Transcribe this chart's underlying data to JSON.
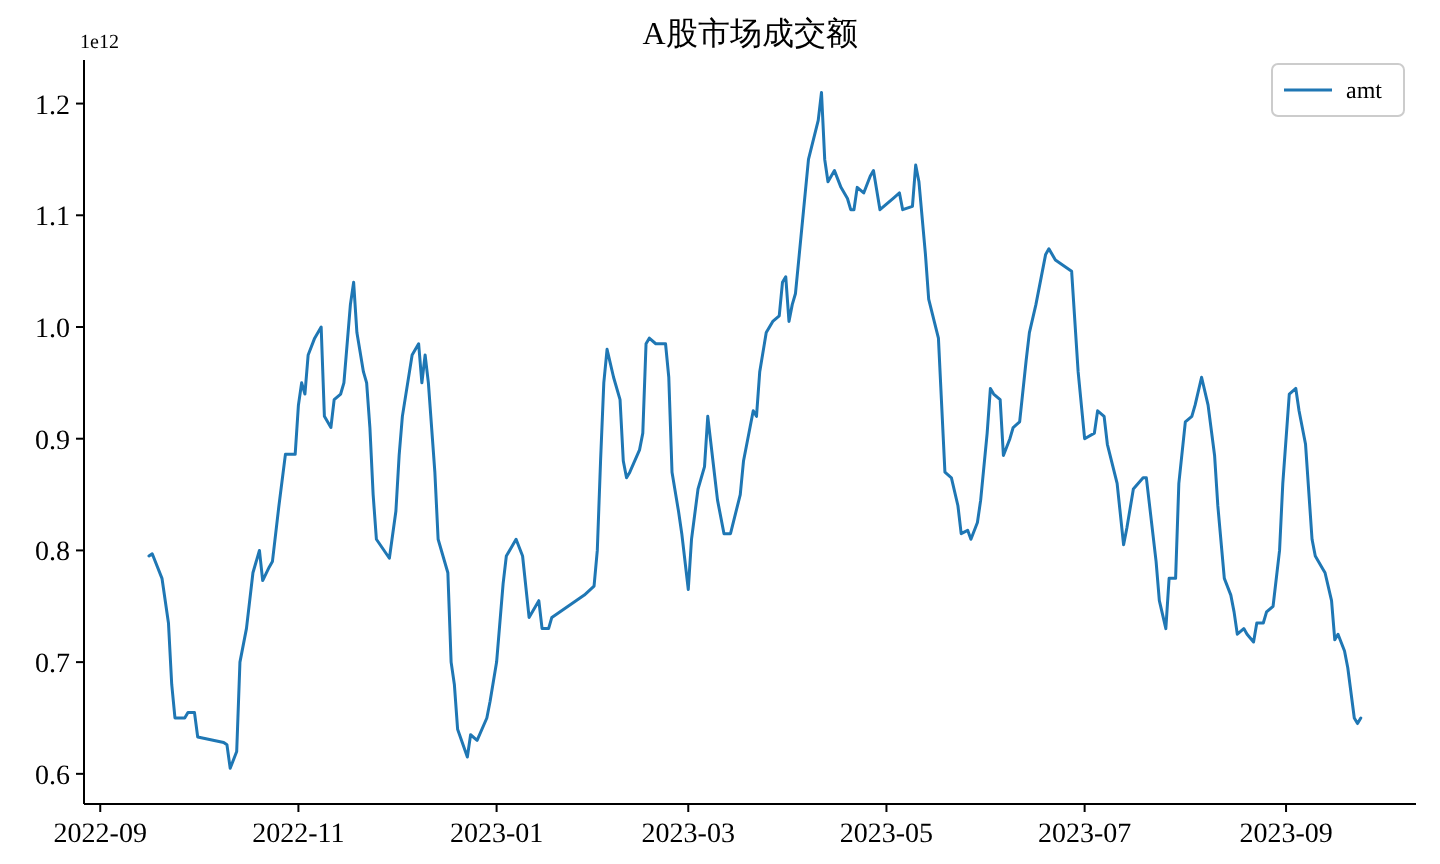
{
  "chart_data": {
    "type": "line",
    "title": "A股市场成交额",
    "annotations": [
      "1e12"
    ],
    "x": [
      "2022-09-16",
      "2022-09-17",
      "2022-09-20",
      "2022-09-22",
      "2022-09-23",
      "2022-09-24",
      "2022-09-27",
      "2022-09-28",
      "2022-09-30",
      "2022-10-01",
      "2022-10-09",
      "2022-10-10",
      "2022-10-11",
      "2022-10-13",
      "2022-10-14",
      "2022-10-16",
      "2022-10-18",
      "2022-10-20",
      "2022-10-21",
      "2022-10-23",
      "2022-10-24",
      "2022-10-26",
      "2022-10-28",
      "2022-10-31",
      "2022-11-01",
      "2022-11-02",
      "2022-11-03",
      "2022-11-04",
      "2022-11-06",
      "2022-11-08",
      "2022-11-09",
      "2022-11-11",
      "2022-11-12",
      "2022-11-14",
      "2022-11-15",
      "2022-11-17",
      "2022-11-18",
      "2022-11-19",
      "2022-11-21",
      "2022-11-22",
      "2022-11-23",
      "2022-11-24",
      "2022-11-25",
      "2022-11-29",
      "2022-12-01",
      "2022-12-02",
      "2022-12-03",
      "2022-12-06",
      "2022-12-08",
      "2022-12-09",
      "2022-12-10",
      "2022-12-11",
      "2022-12-13",
      "2022-12-14",
      "2022-12-17",
      "2022-12-18",
      "2022-12-19",
      "2022-12-20",
      "2022-12-23",
      "2022-12-24",
      "2022-12-26",
      "2022-12-29",
      "2022-12-30",
      "2023-01-01",
      "2023-01-03",
      "2023-01-04",
      "2023-01-07",
      "2023-01-09",
      "2023-01-11",
      "2023-01-14",
      "2023-01-15",
      "2023-01-17",
      "2023-01-18",
      "2023-01-28",
      "2023-01-31",
      "2023-02-01",
      "2023-02-02",
      "2023-02-03",
      "2023-02-04",
      "2023-02-06",
      "2023-02-08",
      "2023-02-09",
      "2023-02-10",
      "2023-02-11",
      "2023-02-14",
      "2023-02-15",
      "2023-02-16",
      "2023-02-17",
      "2023-02-19",
      "2023-02-22",
      "2023-02-23",
      "2023-02-24",
      "2023-02-26",
      "2023-02-27",
      "2023-03-01",
      "2023-03-02",
      "2023-03-04",
      "2023-03-06",
      "2023-03-07",
      "2023-03-09",
      "2023-03-10",
      "2023-03-12",
      "2023-03-14",
      "2023-03-17",
      "2023-03-18",
      "2023-03-20",
      "2023-03-21",
      "2023-03-22",
      "2023-03-23",
      "2023-03-25",
      "2023-03-27",
      "2023-03-29",
      "2023-03-30",
      "2023-03-31",
      "2023-04-01",
      "2023-04-02",
      "2023-04-03",
      "2023-04-05",
      "2023-04-07",
      "2023-04-10",
      "2023-04-11",
      "2023-04-12",
      "2023-04-13",
      "2023-04-15",
      "2023-04-17",
      "2023-04-19",
      "2023-04-20",
      "2023-04-21",
      "2023-04-22",
      "2023-04-24",
      "2023-04-26",
      "2023-04-27",
      "2023-04-29",
      "2023-05-01",
      "2023-05-03",
      "2023-05-05",
      "2023-05-06",
      "2023-05-09",
      "2023-05-10",
      "2023-05-11",
      "2023-05-13",
      "2023-05-14",
      "2023-05-17",
      "2023-05-19",
      "2023-05-21",
      "2023-05-23",
      "2023-05-24",
      "2023-05-26",
      "2023-05-27",
      "2023-05-29",
      "2023-05-30",
      "2023-06-01",
      "2023-06-02",
      "2023-06-03",
      "2023-06-05",
      "2023-06-06",
      "2023-06-08",
      "2023-06-09",
      "2023-06-11",
      "2023-06-13",
      "2023-06-14",
      "2023-06-16",
      "2023-06-19",
      "2023-06-20",
      "2023-06-22",
      "2023-06-27",
      "2023-06-29",
      "2023-07-01",
      "2023-07-04",
      "2023-07-05",
      "2023-07-07",
      "2023-07-08",
      "2023-07-11",
      "2023-07-13",
      "2023-07-14",
      "2023-07-16",
      "2023-07-19",
      "2023-07-20",
      "2023-07-23",
      "2023-07-24",
      "2023-07-26",
      "2023-07-27",
      "2023-07-29",
      "2023-07-30",
      "2023-08-01",
      "2023-08-03",
      "2023-08-04",
      "2023-08-06",
      "2023-08-08",
      "2023-08-10",
      "2023-08-11",
      "2023-08-13",
      "2023-08-15",
      "2023-08-16",
      "2023-08-17",
      "2023-08-19",
      "2023-08-20",
      "2023-08-22",
      "2023-08-23",
      "2023-08-25",
      "2023-08-26",
      "2023-08-28",
      "2023-08-30",
      "2023-08-31",
      "2023-09-02",
      "2023-09-04",
      "2023-09-05",
      "2023-09-07",
      "2023-09-09",
      "2023-09-10",
      "2023-09-12",
      "2023-09-13",
      "2023-09-15",
      "2023-09-16",
      "2023-09-17",
      "2023-09-19",
      "2023-09-20",
      "2023-09-22",
      "2023-09-23",
      "2023-09-24"
    ],
    "series": [
      {
        "name": "amt",
        "color": "#1f77b4",
        "values": [
          0.795,
          0.797,
          0.775,
          0.735,
          0.68,
          0.65,
          0.65,
          0.655,
          0.655,
          0.633,
          0.628,
          0.626,
          0.605,
          0.62,
          0.7,
          0.73,
          0.78,
          0.8,
          0.773,
          0.785,
          0.79,
          0.84,
          0.886,
          0.886,
          0.93,
          0.95,
          0.94,
          0.975,
          0.99,
          1.0,
          0.92,
          0.91,
          0.935,
          0.94,
          0.95,
          1.02,
          1.04,
          0.995,
          0.96,
          0.95,
          0.91,
          0.85,
          0.81,
          0.793,
          0.835,
          0.885,
          0.92,
          0.975,
          0.985,
          0.95,
          0.975,
          0.95,
          0.87,
          0.81,
          0.78,
          0.7,
          0.68,
          0.64,
          0.615,
          0.635,
          0.63,
          0.65,
          0.665,
          0.7,
          0.77,
          0.795,
          0.81,
          0.795,
          0.74,
          0.755,
          0.73,
          0.73,
          0.74,
          0.76,
          0.768,
          0.8,
          0.88,
          0.95,
          0.98,
          0.955,
          0.935,
          0.88,
          0.865,
          0.87,
          0.89,
          0.905,
          0.985,
          0.99,
          0.985,
          0.985,
          0.955,
          0.87,
          0.835,
          0.815,
          0.765,
          0.81,
          0.855,
          0.875,
          0.92,
          0.87,
          0.845,
          0.815,
          0.815,
          0.85,
          0.88,
          0.91,
          0.925,
          0.92,
          0.96,
          0.995,
          1.005,
          1.01,
          1.04,
          1.045,
          1.005,
          1.02,
          1.03,
          1.09,
          1.15,
          1.185,
          1.21,
          1.15,
          1.13,
          1.14,
          1.125,
          1.115,
          1.105,
          1.105,
          1.125,
          1.12,
          1.135,
          1.14,
          1.105,
          1.11,
          1.115,
          1.12,
          1.105,
          1.108,
          1.145,
          1.13,
          1.065,
          1.025,
          0.99,
          0.87,
          0.865,
          0.84,
          0.815,
          0.818,
          0.81,
          0.825,
          0.845,
          0.905,
          0.945,
          0.94,
          0.935,
          0.885,
          0.9,
          0.91,
          0.915,
          0.97,
          0.995,
          1.02,
          1.065,
          1.07,
          1.06,
          1.05,
          0.96,
          0.9,
          0.905,
          0.925,
          0.92,
          0.895,
          0.86,
          0.805,
          0.82,
          0.855,
          0.865,
          0.865,
          0.79,
          0.755,
          0.73,
          0.775,
          0.775,
          0.86,
          0.915,
          0.92,
          0.93,
          0.955,
          0.93,
          0.885,
          0.84,
          0.775,
          0.76,
          0.745,
          0.725,
          0.73,
          0.725,
          0.718,
          0.735,
          0.735,
          0.745,
          0.75,
          0.8,
          0.86,
          0.94,
          0.945,
          0.925,
          0.895,
          0.81,
          0.795,
          0.785,
          0.78,
          0.755,
          0.72,
          0.725,
          0.71,
          0.695,
          0.65,
          0.645,
          0.65
        ]
      }
    ],
    "xlim": [
      "2022-08-27",
      "2023-10-11"
    ],
    "xticks": [
      "2022-09",
      "2022-11",
      "2023-01",
      "2023-03",
      "2023-05",
      "2023-07",
      "2023-09"
    ],
    "ylim": [
      0.573,
      1.239
    ],
    "yticks": [
      0.6,
      0.7,
      0.8,
      0.9,
      {
        "value": 1,
        "label": "1.0"
      },
      1.1,
      1.2
    ],
    "grid": false,
    "legend": "top right"
  }
}
